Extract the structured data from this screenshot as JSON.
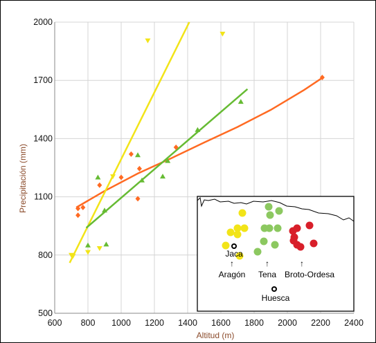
{
  "chart_data": {
    "type": "scatter",
    "title": "",
    "xlabel": "Altitud (m)",
    "ylabel": "Precipitación (mm)",
    "xlim": [
      600,
      2400
    ],
    "ylim": [
      500,
      2000
    ],
    "x_ticks": [
      600,
      800,
      1000,
      1200,
      1400,
      1600,
      1800,
      2000,
      2200,
      2400
    ],
    "y_ticks": [
      500,
      800,
      1100,
      1400,
      1700,
      2000
    ],
    "grid": true,
    "legend": "none",
    "series": [
      {
        "color": "#ff6a22",
        "marker": "diamond",
        "points": [
          [
            740,
            1040
          ],
          [
            740,
            1005
          ],
          [
            770,
            1045
          ],
          [
            870,
            1160
          ],
          [
            1000,
            1200
          ],
          [
            1060,
            1320
          ],
          [
            1100,
            1090
          ],
          [
            1110,
            1245
          ],
          [
            1330,
            1355
          ],
          [
            2210,
            1715
          ]
        ],
        "trend": {
          "type": "power",
          "x_range": [
            730,
            2210
          ],
          "x": [
            730,
            900,
            1100,
            1300,
            1500,
            1700,
            1900,
            2100,
            2210
          ],
          "y": [
            1045,
            1130,
            1220,
            1298,
            1380,
            1460,
            1548,
            1650,
            1713
          ]
        }
      },
      {
        "color": "#f2e418",
        "marker": "triangle-down",
        "points": [
          [
            700,
            800
          ],
          [
            710,
            795
          ],
          [
            800,
            815
          ],
          [
            870,
            835
          ],
          [
            950,
            1205
          ],
          [
            1160,
            1905
          ],
          [
            1610,
            1940
          ]
        ],
        "trend": {
          "type": "linear",
          "x_range": [
            690,
            1410
          ],
          "y_range": [
            760,
            2000
          ]
        }
      },
      {
        "color": "#66bb33",
        "marker": "triangle-up",
        "points": [
          [
            800,
            850
          ],
          [
            860,
            1200
          ],
          [
            900,
            1030
          ],
          [
            910,
            855
          ],
          [
            1100,
            1315
          ],
          [
            1125,
            1185
          ],
          [
            1250,
            1205
          ],
          [
            1280,
            1285
          ],
          [
            1460,
            1445
          ],
          [
            1720,
            1590
          ]
        ],
        "trend": {
          "type": "linear",
          "x_range": [
            790,
            1760
          ],
          "y_range": [
            940,
            1655
          ]
        }
      }
    ]
  },
  "inset_map": {
    "labels": {
      "jaca": "Jaca",
      "aragon": "Aragón",
      "tena": "Tena",
      "broto": "Broto-Ordesa",
      "huesca": "Huesca"
    },
    "arrow_glyph": "↑",
    "colors": {
      "yellow": "#f2e418",
      "green": "#8cc860",
      "red": "#d81f2a"
    }
  }
}
